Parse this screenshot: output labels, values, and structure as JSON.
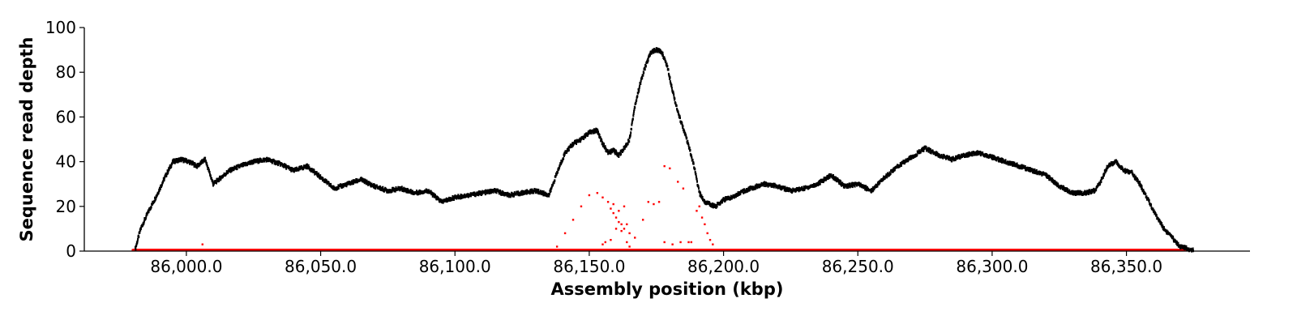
{
  "chart_data": {
    "type": "scatter",
    "title": "",
    "xlabel": "Assembly position (kbp)",
    "ylabel": "Sequence read depth",
    "xlim": [
      85962,
      86396
    ],
    "ylim": [
      0,
      100
    ],
    "x_ticks": [
      86000,
      86050,
      86100,
      86150,
      86200,
      86250,
      86300,
      86350
    ],
    "x_tick_labels": [
      "86,000.0",
      "86,050.0",
      "86,100.0",
      "86,150.0",
      "86,200.0",
      "86,250.0",
      "86,300.0",
      "86,350.0"
    ],
    "y_ticks": [
      0,
      20,
      40,
      60,
      80,
      100
    ],
    "y_tick_labels": [
      "0",
      "20",
      "40",
      "60",
      "80",
      "100"
    ],
    "grid": false,
    "legend": "none",
    "series": [
      {
        "color": "#000000",
        "x": [
          85981,
          85983,
          85986,
          85989,
          85992,
          85995,
          85998,
          86001,
          86004,
          86007,
          86010,
          86013,
          86016,
          86020,
          86025,
          86030,
          86035,
          86040,
          86045,
          86050,
          86055,
          86060,
          86065,
          86070,
          86075,
          86080,
          86085,
          86090,
          86095,
          86100,
          86105,
          86110,
          86115,
          86120,
          86125,
          86130,
          86135,
          86138,
          86141,
          86144,
          86147,
          86150,
          86153,
          86155,
          86157,
          86159,
          86161,
          86163,
          86165,
          86167,
          86169,
          86171,
          86173,
          86175,
          86177,
          86179,
          86181,
          86183,
          86185,
          86187,
          86189,
          86191,
          86193,
          86195,
          86197,
          86200,
          86203,
          86206,
          86210,
          86215,
          86220,
          86225,
          86230,
          86235,
          86240,
          86245,
          86250,
          86255,
          86260,
          86265,
          86270,
          86275,
          86280,
          86285,
          86290,
          86295,
          86300,
          86305,
          86310,
          86315,
          86320,
          86325,
          86330,
          86335,
          86338,
          86340,
          86343,
          86346,
          86349,
          86352,
          86355,
          86358,
          86361,
          86364,
          86367,
          86370,
          86373,
          86375
        ],
        "y": [
          1,
          10,
          18,
          25,
          33,
          40,
          41,
          40,
          38,
          41,
          30,
          33,
          36,
          38,
          40,
          41,
          39,
          36,
          38,
          33,
          28,
          30,
          32,
          29,
          27,
          28,
          26,
          27,
          22,
          24,
          25,
          26,
          27,
          25,
          26,
          27,
          25,
          35,
          44,
          48,
          50,
          53,
          54,
          48,
          44,
          45,
          43,
          46,
          50,
          65,
          75,
          83,
          89,
          90,
          89,
          83,
          72,
          62,
          55,
          47,
          38,
          26,
          22,
          21,
          20,
          23,
          24,
          26,
          28,
          30,
          29,
          27,
          28,
          30,
          34,
          29,
          30,
          27,
          33,
          38,
          42,
          46,
          43,
          41,
          43,
          44,
          42,
          40,
          38,
          36,
          34,
          29,
          26,
          26,
          27,
          30,
          38,
          40,
          36,
          35,
          30,
          23,
          16,
          10,
          6,
          2,
          1,
          0.5
        ]
      },
      {
        "color": "#ff0000",
        "x": [
          85980,
          86006,
          86160,
          86165
        ],
        "y": [
          0.5,
          3,
          0.5,
          0.5
        ]
      },
      {
        "color": "#ff0000",
        "x": [
          86138,
          86141,
          86144,
          86147,
          86150,
          86153,
          86155,
          86157,
          86158,
          86159,
          86160,
          86161,
          86162,
          86163,
          86165,
          86167,
          86170,
          86172,
          86174,
          86176,
          86178,
          86180,
          86183,
          86185,
          86188,
          86190,
          86191,
          86192,
          86193,
          86194,
          86195,
          86196,
          86159,
          86161,
          86163,
          86160,
          86162,
          86164,
          86155,
          86156,
          86158,
          86164,
          86165,
          86178,
          86181,
          86184,
          86187
        ],
        "y": [
          2,
          8,
          14,
          20,
          25,
          26,
          24,
          22,
          19,
          17,
          15,
          13,
          12,
          10,
          8,
          6,
          14,
          22,
          21,
          22,
          38,
          37,
          31,
          28,
          4,
          18,
          20,
          15,
          12,
          8,
          5,
          3,
          21,
          18,
          20,
          10,
          9,
          12,
          3,
          4,
          5,
          4,
          2,
          4,
          3,
          4,
          4
        ]
      }
    ]
  }
}
